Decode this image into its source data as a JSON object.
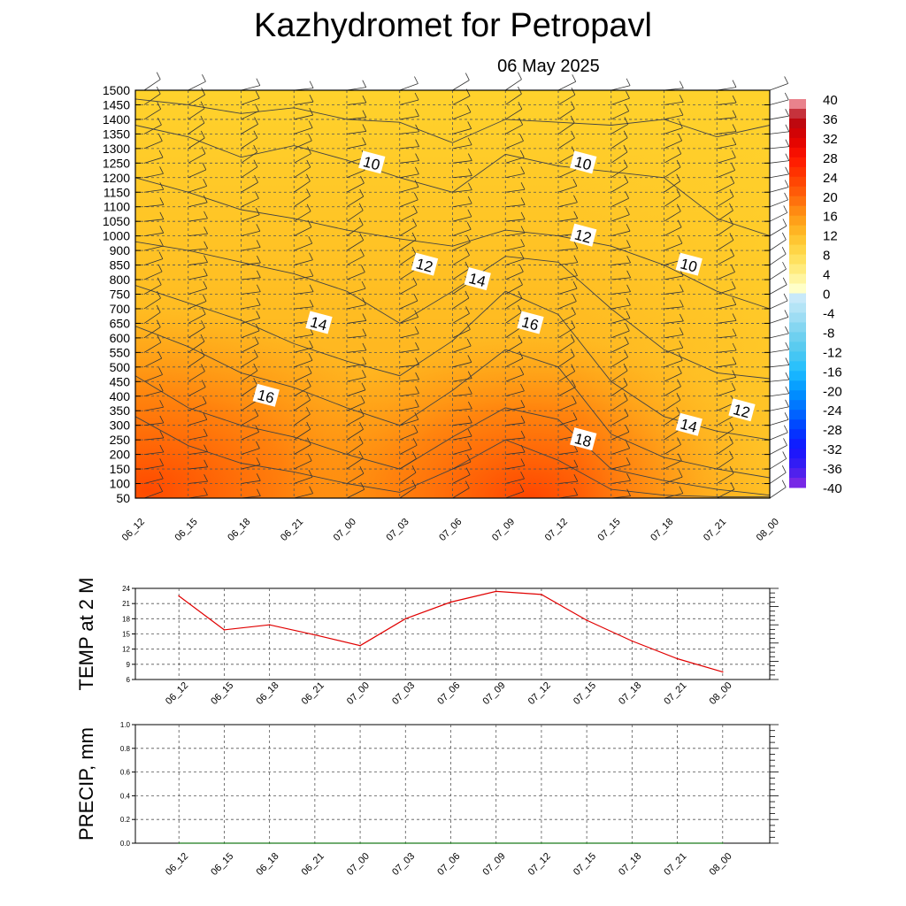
{
  "title": "Kazhydromet  for Petropavl",
  "subtitle": "06 May 2025",
  "colors": {
    "temp_line": "#e00000",
    "precip_line": "#1a7a1a",
    "contour": "#444444"
  },
  "chart_data": [
    {
      "type": "heatmap",
      "name": "cross-section",
      "x_ticks": [
        "06_12",
        "06_15",
        "06_18",
        "06_21",
        "07_00",
        "07_03",
        "07_06",
        "07_09",
        "07_12",
        "07_15",
        "07_18",
        "07_21",
        "08_00"
      ],
      "y_ticks": [
        50,
        100,
        150,
        200,
        250,
        300,
        350,
        400,
        450,
        500,
        550,
        600,
        650,
        700,
        750,
        800,
        850,
        900,
        1000,
        1050,
        1100,
        1150,
        1200,
        1250,
        1300,
        1350,
        1400,
        1450,
        1500
      ],
      "ylim": [
        50,
        1500
      ],
      "grid": true,
      "colorbar": {
        "labels": [
          40,
          36,
          32,
          28,
          24,
          20,
          16,
          12,
          8,
          4,
          0,
          -4,
          -8,
          -12,
          -16,
          -20,
          -24,
          -28,
          -32,
          -36,
          -40
        ],
        "range": [
          -40,
          40
        ],
        "placement": "right"
      },
      "contour_labels": [
        {
          "text": "10",
          "x": "07_00",
          "y": 1250
        },
        {
          "text": "10",
          "x": "07_12",
          "y": 1250
        },
        {
          "text": "10",
          "x": "07_18",
          "y": 850
        },
        {
          "text": "12",
          "x": "07_03",
          "y": 850
        },
        {
          "text": "12",
          "x": "07_12",
          "y": 1000
        },
        {
          "text": "12",
          "x": "07_21",
          "y": 350
        },
        {
          "text": "14",
          "x": "07_06",
          "y": 800
        },
        {
          "text": "14",
          "x": "06_21",
          "y": 650
        },
        {
          "text": "14",
          "x": "07_18",
          "y": 300
        },
        {
          "text": "16",
          "x": "07_09",
          "y": 650
        },
        {
          "text": "16",
          "x": "06_18",
          "y": 400
        },
        {
          "text": "18",
          "x": "07_12",
          "y": 250
        }
      ]
    },
    {
      "type": "line",
      "ylabel": "TEMP at 2 M",
      "categories": [
        "06_12",
        "06_15",
        "06_18",
        "06_21",
        "07_00",
        "07_03",
        "07_06",
        "07_09",
        "07_12",
        "07_15",
        "07_18",
        "07_21",
        "08_00"
      ],
      "y_ticks": [
        6,
        9,
        12,
        15,
        18,
        21,
        24
      ],
      "ylim": [
        6,
        24
      ],
      "grid": true,
      "values": [
        22.5,
        15.8,
        16.8,
        14.8,
        12.7,
        18.0,
        21.3,
        23.4,
        22.8,
        17.7,
        13.6,
        10.1,
        7.5
      ]
    },
    {
      "type": "line",
      "ylabel": "PRECIP, mm",
      "categories": [
        "06_12",
        "06_15",
        "06_18",
        "06_21",
        "07_00",
        "07_03",
        "07_06",
        "07_09",
        "07_12",
        "07_15",
        "07_18",
        "07_21",
        "08_00"
      ],
      "y_ticks": [
        "0.0",
        "0.2",
        "0.4",
        "0.6",
        "0.8",
        "1.0"
      ],
      "ylim": [
        0,
        1
      ],
      "grid": true,
      "values": [
        0,
        0,
        0,
        0,
        0,
        0,
        0,
        0,
        0,
        0,
        0,
        0,
        0
      ]
    }
  ]
}
